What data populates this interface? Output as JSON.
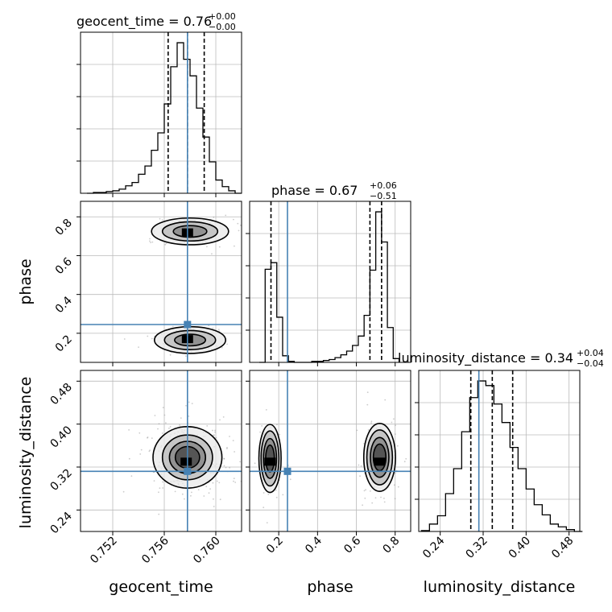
{
  "chart_data": {
    "type": "corner",
    "parameters": [
      "geocent_time",
      "phase",
      "luminosity_distance"
    ],
    "titles": [
      {
        "param": "geocent_time",
        "prefix": "geocent_time = ",
        "value": "0.76",
        "plus": "+0.00",
        "minus": "−0.00"
      },
      {
        "param": "phase",
        "prefix": "phase = ",
        "value": "0.67",
        "plus": "+0.06",
        "minus": "−0.51"
      },
      {
        "param": "luminosity_distance",
        "prefix": "luminosity_distance = ",
        "value": "0.34",
        "plus": "+0.04",
        "minus": "−0.04"
      }
    ],
    "ranges": {
      "geocent_time": [
        0.7495,
        0.762
      ],
      "phase": [
        0.05,
        0.88
      ],
      "luminosity_distance": [
        0.2,
        0.5
      ]
    },
    "ticks": {
      "geocent_time": {
        "values": [
          0.752,
          0.756,
          0.76
        ],
        "labels": [
          "0.752",
          "0.756",
          "0.760"
        ]
      },
      "phase": {
        "values": [
          0.2,
          0.4,
          0.6,
          0.8
        ],
        "labels": [
          "0.2",
          "0.4",
          "0.6",
          "0.8"
        ]
      },
      "luminosity_distance": {
        "values": [
          0.24,
          0.32,
          0.4,
          0.48
        ],
        "labels": [
          "0.24",
          "0.32",
          "0.40",
          "0.48"
        ]
      }
    },
    "truths": {
      "geocent_time": 0.7578,
      "phase": 0.245,
      "luminosity_distance": 0.312
    },
    "quantiles": {
      "geocent_time": [
        0.7563,
        0.7578,
        0.7591
      ],
      "phase": [
        0.16,
        0.67,
        0.73
      ],
      "luminosity_distance": [
        0.297,
        0.337,
        0.375
      ]
    },
    "histograms": {
      "geocent_time": {
        "edges": [
          0.75,
          0.7505,
          0.751,
          0.7515,
          0.752,
          0.7525,
          0.753,
          0.7535,
          0.754,
          0.7545,
          0.755,
          0.7555,
          0.756,
          0.7565,
          0.757,
          0.7575,
          0.758,
          0.7585,
          0.759,
          0.7595,
          0.76,
          0.7605,
          0.761,
          0.7615,
          0.762
        ],
        "counts": [
          0,
          1,
          1,
          2,
          3,
          5,
          9,
          13,
          23,
          33,
          52,
          73,
          108,
          153,
          182,
          162,
          142,
          103,
          68,
          38,
          16,
          8,
          3,
          0
        ]
      },
      "phase": {
        "edges": [
          0.1,
          0.13,
          0.16,
          0.19,
          0.22,
          0.25,
          0.28,
          0.31,
          0.34,
          0.37,
          0.4,
          0.43,
          0.46,
          0.49,
          0.52,
          0.55,
          0.58,
          0.61,
          0.64,
          0.67,
          0.7,
          0.73,
          0.76,
          0.79,
          0.82
        ],
        "counts": [
          0,
          99,
          106,
          48,
          7,
          1,
          0,
          0,
          0,
          1,
          1,
          2,
          3,
          5,
          8,
          12,
          18,
          28,
          50,
          98,
          160,
          128,
          37,
          4
        ]
      },
      "luminosity_distance": {
        "edges": [
          0.205,
          0.22,
          0.235,
          0.25,
          0.265,
          0.28,
          0.295,
          0.31,
          0.325,
          0.34,
          0.355,
          0.37,
          0.385,
          0.4,
          0.415,
          0.43,
          0.445,
          0.46,
          0.475,
          0.49,
          0.505
        ],
        "counts": [
          1,
          8,
          17,
          41,
          68,
          108,
          145,
          163,
          158,
          138,
          118,
          91,
          68,
          46,
          29,
          18,
          8,
          5,
          2,
          0
        ]
      }
    },
    "density_2d": {
      "geocent_time_vs_phase": [
        {
          "center": [
            0.758,
            0.725
          ],
          "spread": [
            0.0013,
            0.03
          ],
          "levels": [
            1.0,
            2.0,
            3.0
          ],
          "peak": [
            0.7578,
            0.72
          ]
        },
        {
          "center": [
            0.758,
            0.165
          ],
          "spread": [
            0.0012,
            0.03
          ],
          "levels": [
            1.0,
            2.0,
            3.0
          ],
          "peak": [
            0.7578,
            0.17
          ]
        }
      ],
      "geocent_time_vs_luminosity_distance": [
        {
          "center": [
            0.7578,
            0.338
          ],
          "spread": [
            0.0014,
            0.03
          ],
          "levels": [
            0.5,
            1.0,
            1.6,
            2.4
          ],
          "peak": [
            0.7577,
            0.33
          ]
        }
      ],
      "phase_vs_luminosity_distance": [
        {
          "center": [
            0.155,
            0.336
          ],
          "spread": [
            0.028,
            0.031
          ],
          "levels": [
            0.7,
            1.3,
            2.0,
            2.6
          ],
          "peak": [
            0.155,
            0.33
          ]
        },
        {
          "center": [
            0.72,
            0.338
          ],
          "spread": [
            0.04,
            0.031
          ],
          "levels": [
            0.7,
            1.3,
            2.0,
            2.6
          ],
          "peak": [
            0.72,
            0.33
          ]
        }
      ]
    },
    "grid": true,
    "colors": {
      "truth": "#4682b4",
      "line": "#000000",
      "grid": "#bbbbbb",
      "points": "#9a9a9a"
    }
  }
}
